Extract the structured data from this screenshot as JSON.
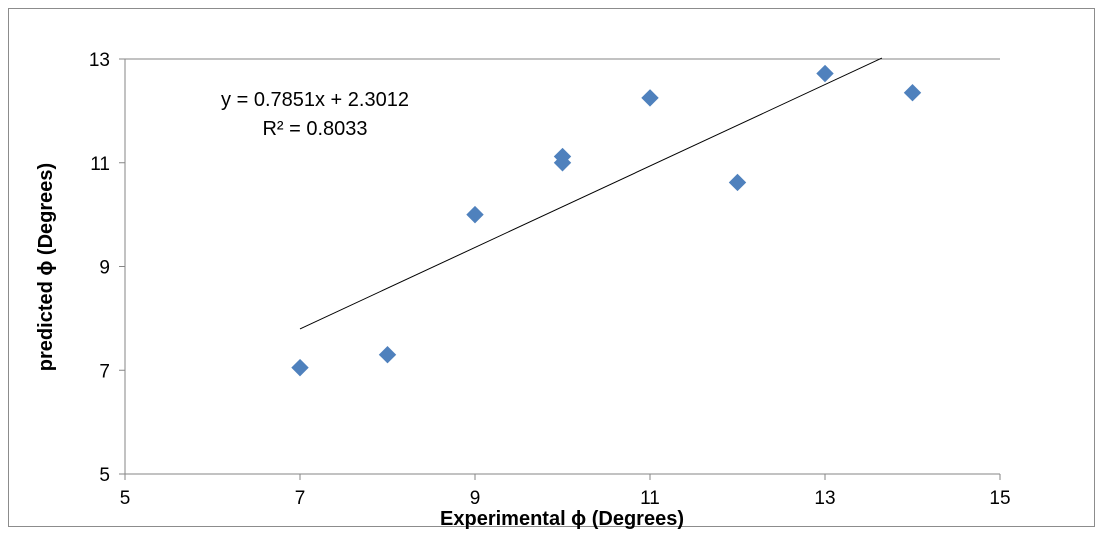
{
  "chart_data": {
    "type": "scatter",
    "xlabel": "Experimental ϕ (Degrees)",
    "ylabel": "predicted ϕ (Degrees)",
    "xlim": [
      5,
      15
    ],
    "ylim": [
      5,
      13
    ],
    "x_ticks": [
      5,
      7,
      9,
      11,
      13,
      15
    ],
    "y_ticks": [
      5,
      7,
      9,
      11,
      13
    ],
    "x_tick_labels": [
      "5",
      "7",
      "9",
      "11",
      "13",
      "15"
    ],
    "y_tick_labels": [
      "5",
      "7",
      "9",
      "11",
      "13"
    ],
    "grid": "horizontal major gridline at top only",
    "legend": "none",
    "marker": "diamond",
    "marker_color": "#4F81BD",
    "trendline_color": "#000000",
    "series": [
      {
        "x": [
          7,
          8,
          9,
          10,
          10,
          11,
          12,
          13,
          14
        ],
        "y": [
          7.05,
          7.3,
          10.0,
          11.0,
          11.12,
          12.25,
          10.62,
          12.72,
          12.35
        ]
      }
    ],
    "trendline": {
      "type": "linear",
      "slope": 0.7851,
      "intercept": 2.3012,
      "x_range": [
        7,
        13.65
      ],
      "equation_label": "y = 0.7851x + 2.3012",
      "r2_label": "R² = 0.8033"
    }
  }
}
